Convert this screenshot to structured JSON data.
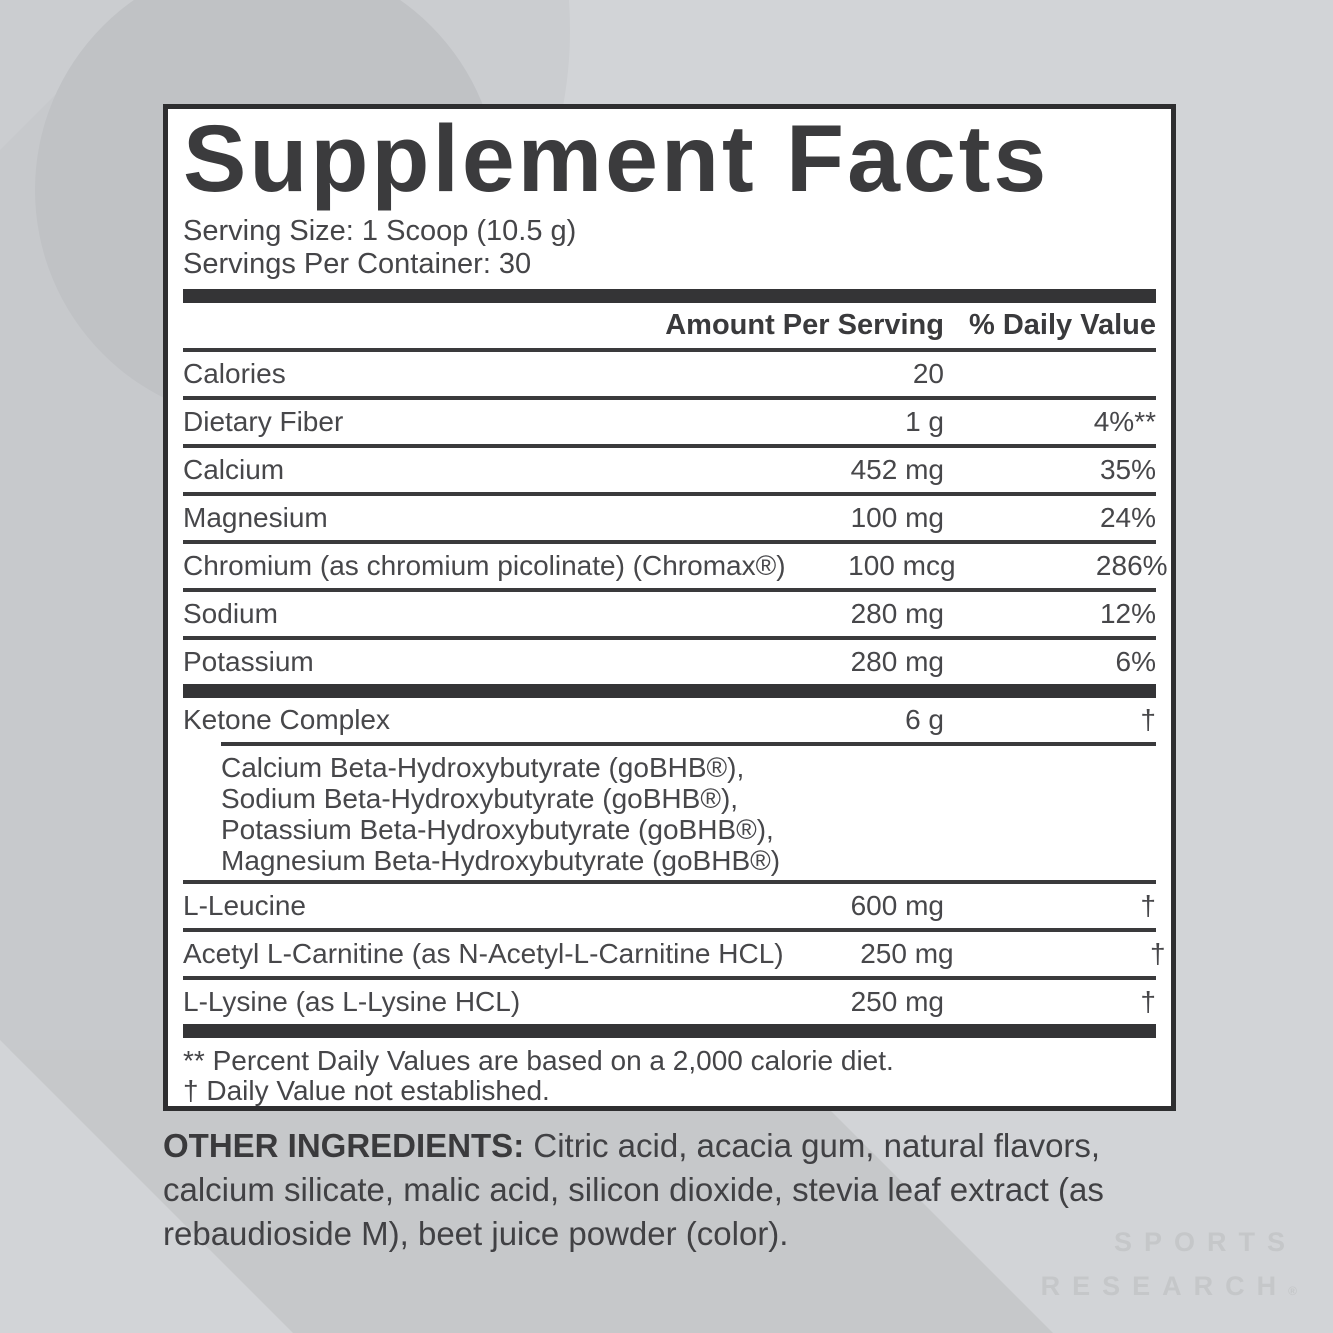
{
  "background": {
    "base_color": "#d2d4d7",
    "disk_color": "#c0c2c5",
    "band_color": "#c7c9cc",
    "swath_color": "#c6c8ca",
    "watermark_line1": "SPORTS",
    "watermark_line2": "RESEARCH",
    "watermark_reg": "®",
    "watermark_color": "#c5c7c9"
  },
  "panel": {
    "title": "Supplement Facts",
    "serving_size": "Serving Size: 1 Scoop (10.5 g)",
    "servings_per_container": "Servings Per Container: 30",
    "columns": {
      "amount": "Amount Per Serving",
      "daily_value": "% Daily Value"
    },
    "rows": [
      {
        "name": "Calories",
        "amount": "20",
        "dv": ""
      },
      {
        "name": "Dietary Fiber",
        "amount": "1 g",
        "dv": "4%**"
      },
      {
        "name": "Calcium",
        "amount": "452 mg",
        "dv": "35%"
      },
      {
        "name": "Magnesium",
        "amount": "100 mg",
        "dv": "24%"
      },
      {
        "name": "Chromium (as chromium picolinate) (Chromax®)",
        "amount": "100 mcg",
        "dv": "286%"
      },
      {
        "name": "Sodium",
        "amount": "280 mg",
        "dv": "12%"
      },
      {
        "name": "Potassium",
        "amount": "280 mg",
        "dv": "6%"
      }
    ],
    "ketone": {
      "name": "Ketone Complex",
      "amount": "6 g",
      "dv": "†",
      "sub_lines": [
        "Calcium Beta-Hydroxybutyrate (goBHB®),",
        "Sodium Beta-Hydroxybutyrate (goBHB®),",
        "Potassium Beta-Hydroxybutyrate (goBHB®),",
        "Magnesium Beta-Hydroxybutyrate (goBHB®)"
      ]
    },
    "rows2": [
      {
        "name": "L-Leucine",
        "amount": "600 mg",
        "dv": "†"
      },
      {
        "name": "Acetyl L-Carnitine (as N-Acetyl-L-Carnitine HCL)",
        "amount": "250 mg",
        "dv": "†"
      },
      {
        "name": "L-Lysine (as L-Lysine HCL)",
        "amount": "250 mg",
        "dv": "†"
      }
    ],
    "footnotes": [
      "** Percent Daily Values are based on a 2,000 calorie diet.",
      "† Daily Value not established."
    ]
  },
  "other_ingredients": {
    "label": "OTHER INGREDIENTS:",
    "text": " Citric acid, acacia gum, natural flavors, calcium silicate, malic acid, silicon dioxide, stevia leaf extract (as rebaudioside M), beet juice powder (color)."
  }
}
